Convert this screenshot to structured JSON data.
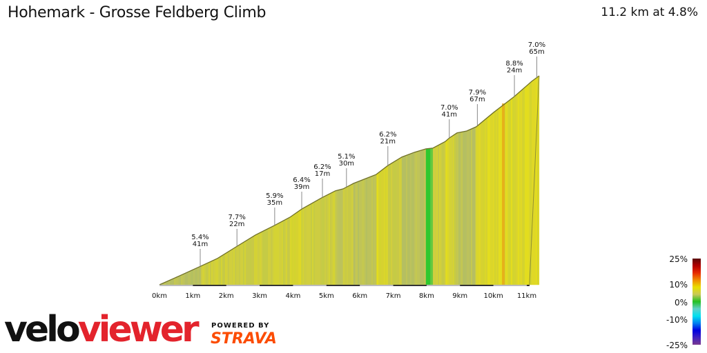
{
  "header": {
    "title": "Hohemark - Grosse Feldberg Climb",
    "summary": "11.2 km at 4.8%"
  },
  "chart_data": {
    "type": "area",
    "title": "Hohemark - Grosse Feldberg Climb",
    "xlabel": "",
    "ylabel": "",
    "x_unit": "km",
    "xlim": [
      0,
      11.4
    ],
    "x_ticks": [
      "0km",
      "1km",
      "2km",
      "3km",
      "4km",
      "5km",
      "6km",
      "7km",
      "8km",
      "9km",
      "10km",
      "11km"
    ],
    "profile": {
      "distance_km": [
        0,
        0.6,
        1.24,
        1.74,
        2.32,
        2.87,
        3.45,
        3.91,
        4.26,
        4.86,
        5.27,
        5.5,
        5.81,
        6.49,
        6.84,
        7.26,
        7.63,
        7.98,
        8.19,
        8.56,
        8.68,
        8.91,
        9.2,
        9.49,
        10.01,
        10.63,
        11.15,
        11.37
      ],
      "elevation_gain_m": [
        0,
        23,
        48,
        68,
        99,
        128,
        153,
        174,
        195,
        224,
        242,
        247,
        261,
        284,
        307,
        329,
        341,
        350,
        352,
        369,
        378,
        391,
        396,
        407,
        444,
        485,
        524,
        538
      ]
    },
    "annotations": [
      {
        "km": 1.22,
        "grade": "5.4%",
        "length": "41m"
      },
      {
        "km": 2.32,
        "grade": "7.7%",
        "length": "22m"
      },
      {
        "km": 3.45,
        "grade": "5.9%",
        "length": "35m"
      },
      {
        "km": 4.26,
        "grade": "6.4%",
        "length": "39m"
      },
      {
        "km": 4.88,
        "grade": "6.2%",
        "length": "17m"
      },
      {
        "km": 5.6,
        "grade": "5.1%",
        "length": "30m"
      },
      {
        "km": 6.84,
        "grade": "6.2%",
        "length": "21m"
      },
      {
        "km": 8.68,
        "grade": "7.0%",
        "length": "41m"
      },
      {
        "km": 9.52,
        "grade": "7.9%",
        "length": "67m"
      },
      {
        "km": 10.63,
        "grade": "8.8%",
        "length": "24m"
      },
      {
        "km": 11.3,
        "grade": "7.0%",
        "length": "65m"
      }
    ],
    "legend": {
      "title": "",
      "labels": [
        "25%",
        "10%",
        "0%",
        "-10%",
        "-25%"
      ],
      "colors": [
        "#5a0a0a",
        "#b30000",
        "#e62a00",
        "#f08a00",
        "#e8e000",
        "#c8c858",
        "#22c022",
        "#60d0c8",
        "#00e0f0",
        "#0080f0",
        "#0000e0",
        "#4020c0",
        "#7a3a90"
      ]
    },
    "grid": false
  },
  "branding": {
    "logo_part1": "velo",
    "logo_part2": "viewer",
    "powered_by": "POWERED BY",
    "strava": "STRAVA"
  }
}
